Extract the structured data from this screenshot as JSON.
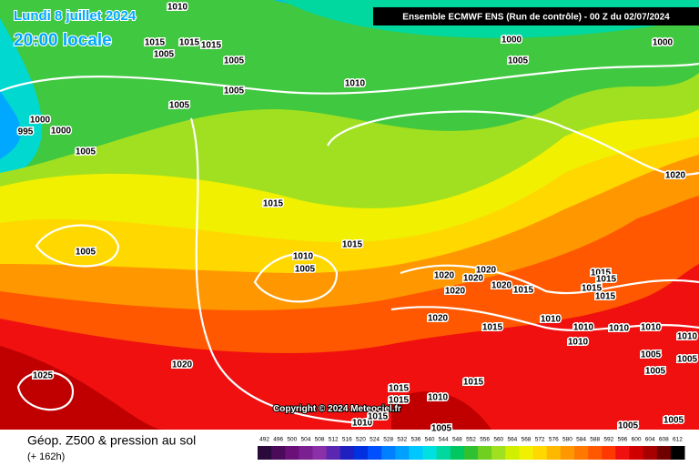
{
  "map_title": "Lundi 8 juillet 2024",
  "map_subtitle": "20:00 locale",
  "header": "Ensemble ECMWF ENS  (Run de contrôle)  -  00 Z du 02/07/2024",
  "copyright": "Copyright © 2024 Meteociel.fr",
  "footer_title": "Géop. Z500 & pression au sol",
  "footer_subtitle": "(+ 162h)",
  "isobar_labels": [
    "1010",
    "1015",
    "1015",
    "1015",
    "1005",
    "1005",
    "1005",
    "1010",
    "1005",
    "1000",
    "995",
    "1000",
    "1005",
    "1000",
    "1005",
    "1000",
    "1020",
    "1015",
    "1015",
    "1005",
    "1010",
    "1005",
    "1020",
    "1020",
    "1020",
    "1020",
    "1020",
    "1015",
    "1015",
    "1015",
    "1015",
    "1015",
    "1010",
    "1015",
    "1020",
    "1010",
    "1010",
    "1010",
    "1010",
    "1010",
    "1005",
    "1005",
    "1005",
    "1020",
    "1025",
    "1015",
    "1015",
    "1010",
    "1015",
    "1005",
    "1005",
    "1010",
    "1015",
    "1005"
  ],
  "colorbar": {
    "labels": [
      492,
      496,
      500,
      504,
      508,
      512,
      516,
      520,
      524,
      528,
      532,
      536,
      540,
      544,
      548,
      552,
      556,
      560,
      564,
      568,
      572,
      576,
      580,
      584,
      588,
      592,
      596,
      600,
      604,
      608,
      612
    ],
    "colors": [
      "#2a0a3a",
      "#4b0a5a",
      "#6a1078",
      "#7a2090",
      "#8a30a8",
      "#5a28b0",
      "#2020c0",
      "#0030e0",
      "#0050ff",
      "#0080ff",
      "#00a0ff",
      "#00c8ff",
      "#00e0e0",
      "#00d8a0",
      "#00c860",
      "#30c030",
      "#70d020",
      "#a0e020",
      "#d0f000",
      "#f0f000",
      "#ffd800",
      "#ffb800",
      "#ff9800",
      "#ff7800",
      "#ff5800",
      "#ff3800",
      "#f01010",
      "#d00000",
      "#a80000",
      "#700000",
      "#000000"
    ]
  }
}
